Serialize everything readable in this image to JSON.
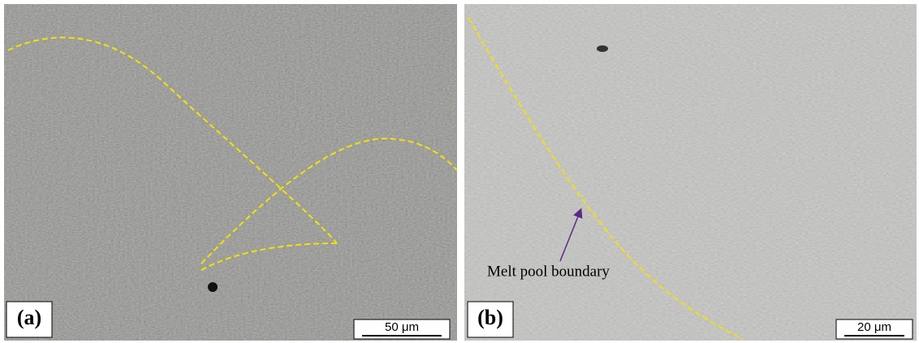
{
  "panels": [
    {
      "label": "(a)",
      "scale": "50 μm"
    },
    {
      "label": "(b)",
      "scale": "20 μm",
      "annotation": "Melt pool boundary"
    }
  ]
}
